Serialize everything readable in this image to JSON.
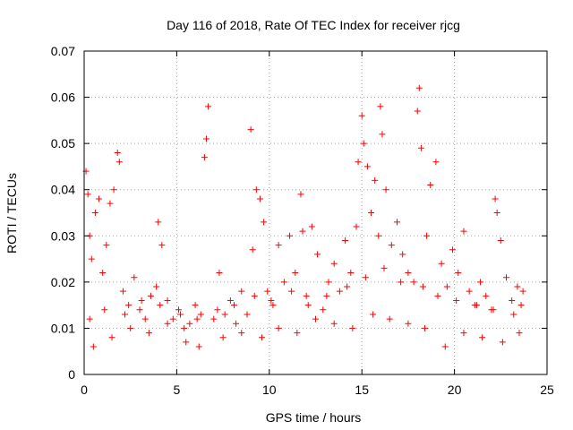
{
  "chart_data": {
    "type": "scatter",
    "title": "Day 116 of 2018, Rate Of TEC Index for receiver rjcg",
    "xlabel": "GPS time / hours",
    "ylabel": "ROTI / TECUs",
    "xlim": [
      0,
      25
    ],
    "ylim": [
      0,
      0.07
    ],
    "xticks": [
      "0",
      "5",
      "10",
      "15",
      "20",
      "25"
    ],
    "yticks": [
      "0",
      "0.01",
      "0.02",
      "0.03",
      "0.04",
      "0.05",
      "0.06",
      "0.07"
    ],
    "grid": true,
    "marker": "+",
    "color": "#ff0000",
    "series": [
      {
        "name": "ROTI",
        "x": [
          0.1,
          0.2,
          0.3,
          0.4,
          0.6,
          0.8,
          1.0,
          1.2,
          1.4,
          1.6,
          1.8,
          1.9,
          2.1,
          2.4,
          2.7,
          3.0,
          3.3,
          3.6,
          3.9,
          4.0,
          4.2,
          4.5,
          4.8,
          5.1,
          5.4,
          5.7,
          6.0,
          6.3,
          6.5,
          6.6,
          6.7,
          7.0,
          7.3,
          7.6,
          7.9,
          8.2,
          8.5,
          8.8,
          9.0,
          9.1,
          9.3,
          9.5,
          9.7,
          9.9,
          10.2,
          10.5,
          10.8,
          11.1,
          11.4,
          11.7,
          11.8,
          12.0,
          12.3,
          12.6,
          12.9,
          13.2,
          13.5,
          13.8,
          14.1,
          14.4,
          14.7,
          14.8,
          15.0,
          15.1,
          15.3,
          15.5,
          15.7,
          15.9,
          16.0,
          16.1,
          16.3,
          16.6,
          16.9,
          17.2,
          17.5,
          17.8,
          18.0,
          18.1,
          18.2,
          18.5,
          18.7,
          19.0,
          19.3,
          19.6,
          19.9,
          20.2,
          20.5,
          20.8,
          21.1,
          21.4,
          21.7,
          22.0,
          22.2,
          22.3,
          22.5,
          22.8,
          23.1,
          23.4,
          23.6,
          23.7,
          0.5,
          1.5,
          2.5,
          3.5,
          4.5,
          5.5,
          6.2,
          7.5,
          8.5,
          9.6,
          10.5,
          11.5,
          12.5,
          13.5,
          14.5,
          15.6,
          16.5,
          17.5,
          18.4,
          19.5,
          20.5,
          21.5,
          22.6,
          23.5,
          0.3,
          1.1,
          2.2,
          3.1,
          4.1,
          5.2,
          6.1,
          7.2,
          8.1,
          9.2,
          10.1,
          11.2,
          12.1,
          13.1,
          14.2,
          15.2,
          16.2,
          17.1,
          18.3,
          19.1,
          20.1,
          21.2,
          22.1,
          23.2
        ],
        "y": [
          0.044,
          0.039,
          0.03,
          0.025,
          0.035,
          0.038,
          0.022,
          0.028,
          0.037,
          0.04,
          0.048,
          0.046,
          0.018,
          0.015,
          0.021,
          0.014,
          0.012,
          0.017,
          0.019,
          0.033,
          0.028,
          0.016,
          0.012,
          0.014,
          0.01,
          0.011,
          0.015,
          0.013,
          0.047,
          0.051,
          0.058,
          0.012,
          0.022,
          0.013,
          0.016,
          0.011,
          0.018,
          0.013,
          0.053,
          0.027,
          0.04,
          0.038,
          0.033,
          0.018,
          0.015,
          0.028,
          0.02,
          0.03,
          0.022,
          0.039,
          0.031,
          0.017,
          0.032,
          0.026,
          0.014,
          0.02,
          0.024,
          0.018,
          0.029,
          0.022,
          0.032,
          0.046,
          0.056,
          0.05,
          0.045,
          0.035,
          0.042,
          0.03,
          0.058,
          0.052,
          0.04,
          0.028,
          0.033,
          0.026,
          0.022,
          0.02,
          0.057,
          0.062,
          0.049,
          0.03,
          0.041,
          0.046,
          0.024,
          0.019,
          0.027,
          0.022,
          0.031,
          0.018,
          0.015,
          0.02,
          0.017,
          0.014,
          0.038,
          0.035,
          0.029,
          0.021,
          0.016,
          0.019,
          0.015,
          0.018,
          0.006,
          0.008,
          0.01,
          0.009,
          0.011,
          0.007,
          0.006,
          0.008,
          0.009,
          0.008,
          0.01,
          0.009,
          0.012,
          0.011,
          0.01,
          0.013,
          0.012,
          0.011,
          0.01,
          0.006,
          0.009,
          0.008,
          0.007,
          0.009,
          0.012,
          0.014,
          0.013,
          0.016,
          0.015,
          0.013,
          0.012,
          0.014,
          0.015,
          0.017,
          0.016,
          0.018,
          0.015,
          0.017,
          0.019,
          0.021,
          0.023,
          0.02,
          0.019,
          0.017,
          0.016,
          0.015,
          0.014,
          0.013
        ]
      }
    ]
  }
}
